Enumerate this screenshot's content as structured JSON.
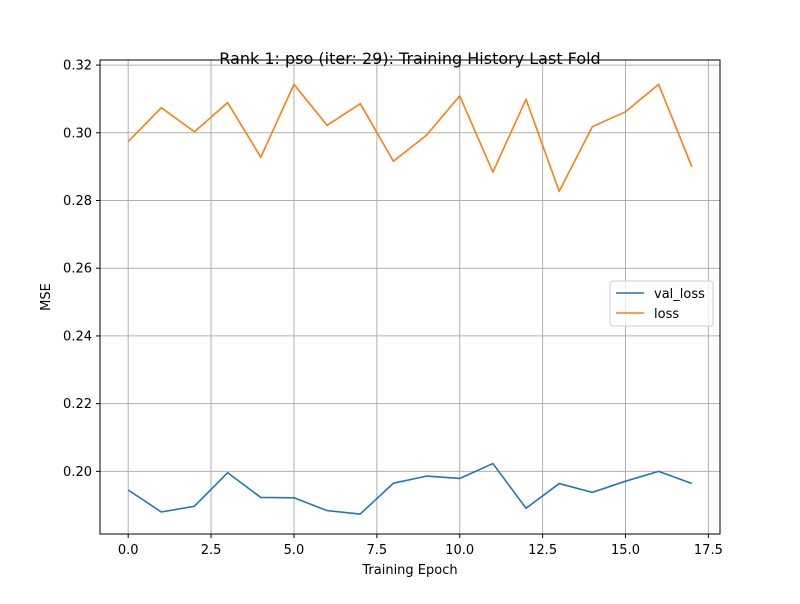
{
  "chart_data": {
    "type": "line",
    "title": "Rank 1: pso (iter: 29): Training History Last Fold",
    "xlabel": "Training Epoch",
    "ylabel": "MSE",
    "xlim": [
      -0.85,
      17.85
    ],
    "ylim": [
      0.1815,
      0.3215
    ],
    "x_ticks": [
      0.0,
      2.5,
      5.0,
      7.5,
      10.0,
      12.5,
      15.0,
      17.5
    ],
    "x_tick_labels": [
      "0.0",
      "2.5",
      "5.0",
      "7.5",
      "10.0",
      "12.5",
      "15.0",
      "17.5"
    ],
    "y_ticks": [
      0.2,
      0.22,
      0.24,
      0.26,
      0.28,
      0.3,
      0.32
    ],
    "y_tick_labels": [
      "0.20",
      "0.22",
      "0.24",
      "0.26",
      "0.28",
      "0.30",
      "0.32"
    ],
    "grid": true,
    "legend_position": "center-right",
    "x": [
      0,
      1,
      2,
      3,
      4,
      5,
      6,
      7,
      8,
      9,
      10,
      11,
      12,
      13,
      14,
      15,
      16,
      17
    ],
    "series": [
      {
        "name": "val_loss",
        "color": "#1f77b4",
        "values": [
          0.1945,
          0.188,
          0.1897,
          0.1996,
          0.1923,
          0.1922,
          0.1884,
          0.1874,
          0.1965,
          0.1986,
          0.1979,
          0.2023,
          0.1891,
          0.1964,
          0.1938,
          0.1971,
          0.2,
          0.1964
        ]
      },
      {
        "name": "loss",
        "color": "#ff7f0e",
        "values": [
          0.2974,
          0.3074,
          0.3003,
          0.3089,
          0.2928,
          0.3143,
          0.3022,
          0.3086,
          0.2916,
          0.2993,
          0.3109,
          0.2884,
          0.3099,
          0.2827,
          0.3018,
          0.3062,
          0.3143,
          0.29
        ]
      }
    ]
  }
}
